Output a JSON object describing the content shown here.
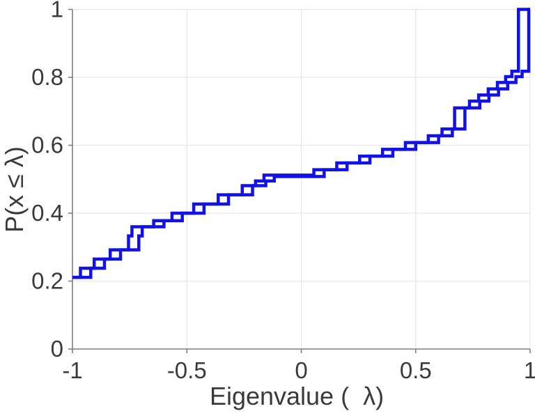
{
  "figure": {
    "description": "Empirical cumulative distribution plot of eigenvalues (two overlapping blue step curves, MATLAB-style axes with light gridlines)",
    "background_color": "#ffffff",
    "text_color": "#3a3a3a",
    "axis_line_color": "#808080",
    "grid_color": "#e6e6e6"
  },
  "chart_data": {
    "type": "line",
    "subtype": "step-ecdf",
    "title": "",
    "xlabel": "Eigenvalue (  λ)",
    "ylabel": "P(x ≤ λ)",
    "xlim": [
      -1,
      1
    ],
    "ylim": [
      0,
      1
    ],
    "x_ticks": [
      -1,
      -0.5,
      0,
      0.5,
      1
    ],
    "x_tick_labels": [
      "-1",
      "-0.5",
      "0",
      "0.5",
      "1"
    ],
    "y_ticks": [
      0,
      0.2,
      0.4,
      0.6,
      0.8,
      1
    ],
    "y_tick_labels": [
      "0",
      "0.2",
      "0.4",
      "0.6",
      "0.8",
      "1"
    ],
    "grid": true,
    "legend": "none",
    "line_color": "#1212e6",
    "line_width": 4.5,
    "series": [
      {
        "name": "ecdf-curve-1",
        "step_points": [
          [
            -1.0,
            0.211
          ],
          [
            -0.92,
            0.238
          ],
          [
            -0.86,
            0.265
          ],
          [
            -0.79,
            0.292
          ],
          [
            -0.71,
            0.333
          ],
          [
            -0.695,
            0.36
          ],
          [
            -0.6,
            0.378
          ],
          [
            -0.52,
            0.4
          ],
          [
            -0.425,
            0.427
          ],
          [
            -0.318,
            0.454
          ],
          [
            -0.213,
            0.481
          ],
          [
            -0.155,
            0.495
          ],
          [
            -0.118,
            0.508
          ],
          [
            0.1,
            0.528
          ],
          [
            0.2,
            0.548
          ],
          [
            0.3,
            0.568
          ],
          [
            0.4,
            0.588
          ],
          [
            0.5,
            0.608
          ],
          [
            0.6,
            0.628
          ],
          [
            0.66,
            0.648
          ],
          [
            0.715,
            0.71
          ],
          [
            0.78,
            0.73
          ],
          [
            0.82,
            0.748
          ],
          [
            0.862,
            0.766
          ],
          [
            0.902,
            0.785
          ],
          [
            0.938,
            0.802
          ],
          [
            0.965,
            0.818
          ],
          [
            0.994,
            1.0
          ],
          [
            1.0,
            1.0
          ]
        ]
      },
      {
        "name": "ecdf-curve-2",
        "step_points": [
          [
            -1.0,
            0.211
          ],
          [
            -0.965,
            0.238
          ],
          [
            -0.905,
            0.265
          ],
          [
            -0.835,
            0.292
          ],
          [
            -0.755,
            0.333
          ],
          [
            -0.74,
            0.36
          ],
          [
            -0.645,
            0.378
          ],
          [
            -0.565,
            0.4
          ],
          [
            -0.47,
            0.427
          ],
          [
            -0.363,
            0.454
          ],
          [
            -0.258,
            0.481
          ],
          [
            -0.2,
            0.495
          ],
          [
            -0.163,
            0.512
          ],
          [
            0.055,
            0.528
          ],
          [
            0.155,
            0.548
          ],
          [
            0.255,
            0.568
          ],
          [
            0.355,
            0.588
          ],
          [
            0.455,
            0.608
          ],
          [
            0.555,
            0.628
          ],
          [
            0.615,
            0.648
          ],
          [
            0.67,
            0.71
          ],
          [
            0.735,
            0.73
          ],
          [
            0.775,
            0.748
          ],
          [
            0.817,
            0.766
          ],
          [
            0.857,
            0.785
          ],
          [
            0.893,
            0.802
          ],
          [
            0.92,
            0.818
          ],
          [
            0.949,
            1.0
          ],
          [
            1.0,
            1.0
          ]
        ]
      }
    ]
  }
}
